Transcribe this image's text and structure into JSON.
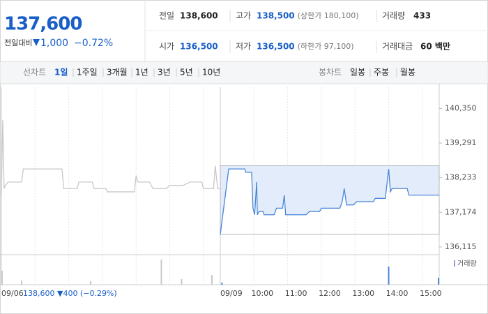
{
  "quote": {
    "price": "137,600",
    "change_label": "전일대비",
    "change": "1,000",
    "change_rate": "−0.72%"
  },
  "stats": [
    {
      "label": "전일",
      "value": "138,600"
    },
    {
      "label": "고가",
      "value": "138,500",
      "note": "(상한가 180,100)"
    },
    {
      "label": "거래량",
      "value": "433"
    },
    {
      "label": "시가",
      "value": "136,500"
    },
    {
      "label": "저가",
      "value": "136,500",
      "note": "(하한가 97,100)"
    },
    {
      "label": "거래대금",
      "value": "60 백만"
    }
  ],
  "tabs": {
    "line_label": "선차트",
    "line": [
      "1일",
      "1주일",
      "3개월",
      "1년",
      "3년",
      "5년",
      "10년"
    ],
    "candle_label": "봉차트",
    "candle": [
      "일봉",
      "주봉",
      "월봉"
    ]
  },
  "chart_data": {
    "type": "line",
    "ylim": [
      135900,
      141000
    ],
    "yticks": [
      {
        "value": 140350,
        "label": "140,350"
      },
      {
        "value": 139291,
        "label": "139,291"
      },
      {
        "value": 138233,
        "label": "138,233"
      },
      {
        "value": 137174,
        "label": "137,174"
      },
      {
        "value": 136115,
        "label": "136,115"
      }
    ],
    "xlim": [
      0,
      13
    ],
    "xticks": [
      {
        "value": 0,
        "label": "09/06"
      },
      {
        "value": 6.5,
        "label": "09/09"
      },
      {
        "value": 7.5,
        "label": "10:00"
      },
      {
        "value": 8.5,
        "label": "11:00"
      },
      {
        "value": 9.5,
        "label": "12:00"
      },
      {
        "value": 10.5,
        "label": "13:00"
      },
      {
        "value": 11.5,
        "label": "14:00"
      },
      {
        "value": 12.5,
        "label": "15:00"
      }
    ],
    "annotation": "138,600 ▼400 (−0.29%)",
    "baseline": 138600,
    "series": [
      {
        "color": "#c8c8c8",
        "x": [
          0,
          0.04,
          0.08,
          0.12,
          0.2,
          0.6,
          0.65,
          1.8,
          1.85,
          2.25,
          2.3,
          2.7,
          2.75,
          3.1,
          3.15,
          3.95,
          4.0,
          4.05,
          4.4,
          4.5,
          4.9,
          5.0,
          5.4,
          5.6,
          5.95,
          6.0,
          6.3,
          6.35,
          6.42,
          6.5
        ],
        "values": [
          137700,
          140000,
          137900,
          138000,
          138100,
          138100,
          138500,
          138500,
          137900,
          137900,
          138100,
          138100,
          137900,
          137900,
          137800,
          137800,
          138300,
          138100,
          138100,
          137900,
          137900,
          138000,
          138000,
          138100,
          138100,
          137900,
          137900,
          138600,
          137900,
          137900
        ]
      },
      {
        "color": "#4a86d8",
        "x": [
          6.5,
          6.75,
          7.23,
          7.25,
          7.43,
          7.47,
          7.52,
          7.58,
          7.6,
          7.65,
          7.77,
          7.8,
          8.1,
          8.17,
          8.35,
          8.4,
          8.44,
          8.48,
          9.05,
          9.15,
          9.45,
          9.5,
          10.05,
          10.12,
          10.18,
          10.25,
          10.45,
          10.55,
          11.05,
          11.1,
          11.4,
          11.5,
          11.55,
          11.6,
          12.05,
          12.1,
          13.0
        ],
        "values": [
          136500,
          138500,
          138500,
          138400,
          138400,
          137300,
          137100,
          138100,
          137100,
          137200,
          137200,
          137100,
          137100,
          137300,
          137300,
          137700,
          137100,
          137100,
          137100,
          137200,
          137200,
          137300,
          137300,
          137500,
          137900,
          137400,
          137400,
          137500,
          137500,
          137600,
          137600,
          138500,
          137800,
          137900,
          137900,
          137700,
          137700
        ]
      }
    ],
    "volume": {
      "name": "거래량",
      "x": [
        0.02,
        0.6,
        2.65,
        4.75,
        5.35,
        6.25,
        6.55,
        11.5,
        12.98
      ],
      "values": [
        20,
        6,
        5,
        36,
        8,
        14,
        3,
        26,
        10
      ],
      "colors": [
        "#c8c8c8",
        "#c8c8c8",
        "#c8c8c8",
        "#c8c8c8",
        "#c8c8c8",
        "#c8c8c8",
        "#4a86d8",
        "#4a86d8",
        "#4a86d8"
      ]
    }
  }
}
